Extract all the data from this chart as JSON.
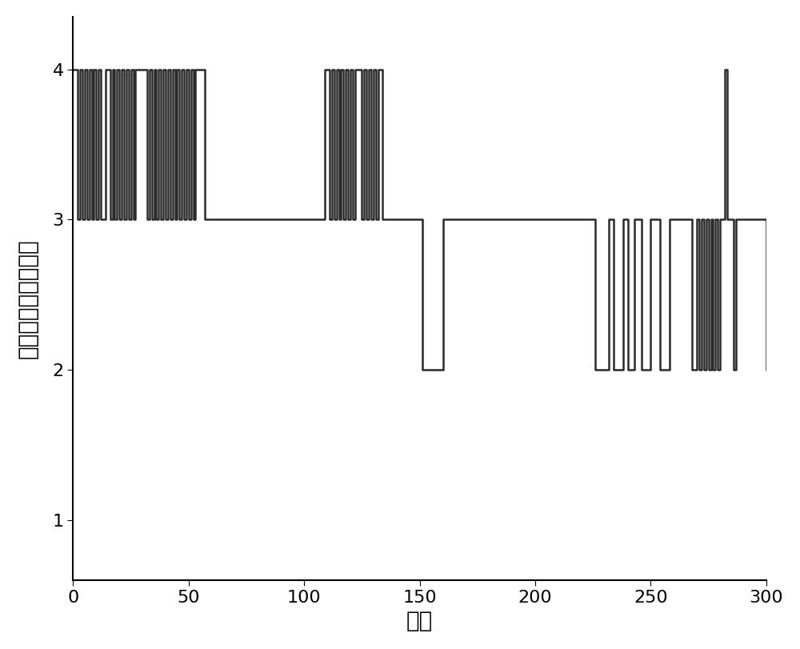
{
  "title": "",
  "xlabel": "环数",
  "ylabel": "盾构机掘进状态等级",
  "xlim": [
    0,
    300
  ],
  "ylim": [
    0.6,
    4.35
  ],
  "xticks": [
    0,
    50,
    100,
    150,
    200,
    250,
    300
  ],
  "yticks": [
    1,
    2,
    3,
    4
  ],
  "line_color": "#2a2a2a",
  "line_width": 1.8,
  "background_color": "#ffffff",
  "x": [
    0,
    1,
    2,
    3,
    4,
    5,
    6,
    7,
    8,
    9,
    10,
    11,
    12,
    13,
    14,
    15,
    16,
    17,
    18,
    19,
    20,
    21,
    22,
    23,
    24,
    25,
    26,
    27,
    28,
    29,
    30,
    31,
    32,
    33,
    34,
    35,
    36,
    37,
    38,
    39,
    40,
    41,
    42,
    43,
    44,
    45,
    46,
    47,
    48,
    49,
    50,
    51,
    52,
    53,
    54,
    55,
    56,
    57,
    58,
    59,
    60,
    61,
    62,
    63,
    64,
    65,
    66,
    67,
    68,
    69,
    70,
    71,
    72,
    73,
    74,
    75,
    76,
    77,
    78,
    79,
    80,
    81,
    82,
    83,
    84,
    85,
    86,
    87,
    88,
    89,
    90,
    91,
    92,
    93,
    94,
    95,
    96,
    97,
    98,
    99,
    100,
    101,
    102,
    103,
    104,
    105,
    106,
    107,
    108,
    109,
    110,
    111,
    112,
    113,
    114,
    115,
    116,
    117,
    118,
    119,
    120,
    121,
    122,
    123,
    124,
    125,
    126,
    127,
    128,
    129,
    130,
    131,
    132,
    133,
    134,
    135,
    136,
    137,
    138,
    139,
    140,
    141,
    142,
    143,
    144,
    145,
    146,
    147,
    148,
    149,
    150,
    151,
    152,
    153,
    154,
    155,
    156,
    157,
    158,
    159,
    160,
    161,
    162,
    163,
    164,
    165,
    166,
    167,
    168,
    169,
    170,
    171,
    172,
    173,
    174,
    175,
    176,
    177,
    178,
    179,
    180,
    181,
    182,
    183,
    184,
    185,
    186,
    187,
    188,
    189,
    190,
    191,
    192,
    193,
    194,
    195,
    196,
    197,
    198,
    199,
    200,
    201,
    202,
    203,
    204,
    205,
    206,
    207,
    208,
    209,
    210,
    211,
    212,
    213,
    214,
    215,
    216,
    217,
    218,
    219,
    220,
    221,
    222,
    223,
    224,
    225,
    226,
    227,
    228,
    229,
    230,
    231,
    232,
    233,
    234,
    235,
    236,
    237,
    238,
    239,
    240,
    241,
    242,
    243,
    244,
    245,
    246,
    247,
    248,
    249,
    250,
    251,
    252,
    253,
    254,
    255,
    256,
    257,
    258,
    259,
    260,
    261,
    262,
    263,
    264,
    265,
    266,
    267,
    268,
    269,
    270,
    271,
    272,
    273,
    274,
    275,
    276,
    277,
    278,
    279,
    280,
    281,
    282,
    283,
    284,
    285,
    286,
    287,
    288,
    289,
    290,
    291,
    292,
    293,
    294,
    295,
    296,
    297,
    298,
    299,
    300
  ],
  "y": [
    4,
    4,
    3,
    4,
    3,
    4,
    3,
    4,
    3,
    4,
    3,
    4,
    3,
    3,
    4,
    4,
    3,
    4,
    3,
    4,
    3,
    4,
    3,
    4,
    3,
    4,
    3,
    4,
    4,
    4,
    4,
    4,
    3,
    4,
    3,
    4,
    3,
    4,
    3,
    4,
    3,
    4,
    3,
    4,
    3,
    4,
    3,
    4,
    3,
    4,
    3,
    4,
    3,
    4,
    4,
    4,
    4,
    3,
    3,
    3,
    3,
    3,
    3,
    3,
    3,
    3,
    3,
    3,
    3,
    3,
    3,
    3,
    3,
    3,
    3,
    3,
    3,
    3,
    3,
    3,
    3,
    3,
    3,
    3,
    3,
    3,
    3,
    3,
    3,
    3,
    3,
    3,
    3,
    3,
    3,
    3,
    3,
    3,
    3,
    3,
    3,
    3,
    3,
    3,
    3,
    3,
    3,
    3,
    3,
    4,
    4,
    3,
    4,
    3,
    4,
    3,
    4,
    3,
    4,
    3,
    4,
    3,
    4,
    4,
    4,
    3,
    4,
    3,
    4,
    3,
    4,
    3,
    4,
    4,
    3,
    3,
    3,
    3,
    3,
    3,
    3,
    3,
    3,
    3,
    3,
    3,
    3,
    3,
    3,
    3,
    3,
    2,
    2,
    2,
    2,
    2,
    2,
    2,
    2,
    2,
    3,
    3,
    3,
    3,
    3,
    3,
    3,
    3,
    3,
    3,
    3,
    3,
    3,
    3,
    3,
    3,
    3,
    3,
    3,
    3,
    3,
    3,
    3,
    3,
    3,
    3,
    3,
    3,
    3,
    3,
    3,
    3,
    3,
    3,
    3,
    3,
    3,
    3,
    3,
    3,
    3,
    3,
    3,
    3,
    3,
    3,
    3,
    3,
    3,
    3,
    3,
    3,
    3,
    3,
    3,
    3,
    3,
    3,
    3,
    3,
    3,
    3,
    3,
    3,
    3,
    3,
    2,
    2,
    2,
    2,
    2,
    2,
    3,
    3,
    2,
    2,
    2,
    2,
    3,
    3,
    2,
    2,
    2,
    3,
    3,
    3,
    2,
    2,
    2,
    2,
    3,
    3,
    3,
    3,
    2,
    2,
    2,
    2,
    3,
    3,
    3,
    3,
    3,
    3,
    3,
    3,
    3,
    3,
    2,
    2,
    3,
    2,
    3,
    2,
    3,
    2,
    3,
    2,
    3,
    2,
    3,
    3,
    4,
    3,
    3,
    3,
    2,
    3,
    3,
    3,
    3,
    3,
    3,
    3,
    3,
    3,
    3,
    3,
    3,
    3,
    2
  ]
}
